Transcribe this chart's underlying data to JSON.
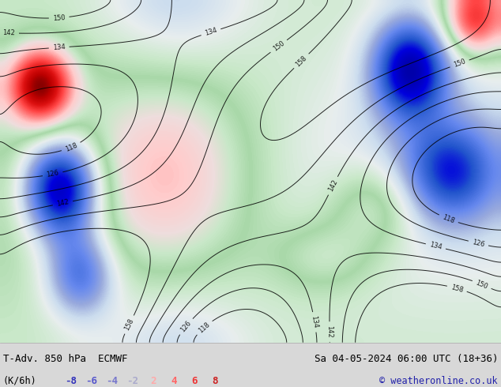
{
  "title_left": "T-Adv. 850 hPa  ECMWF",
  "title_right": "Sa 04-05-2024 06:00 UTC (18+36)",
  "unit_label": "(K/6h)",
  "copyright": "© weatheronline.co.uk",
  "colorbar_values": [
    "-8",
    "-6",
    "-4",
    "-2",
    "2",
    "4",
    "6",
    "8"
  ],
  "colorbar_text_colors": [
    "#3333bb",
    "#5555cc",
    "#7777cc",
    "#aaaacc",
    "#ffaaaa",
    "#ff6666",
    "#ee3333",
    "#cc2222"
  ],
  "background_color": "#d8d8d8",
  "map_bg": "#f0f0f0",
  "bottom_bar_color": "#d8d8d8",
  "figsize": [
    6.34,
    4.9
  ],
  "dpi": 100,
  "map_colors": [
    [
      0.0,
      "#0000aa"
    ],
    [
      0.08,
      "#0000dd"
    ],
    [
      0.15,
      "#2255cc"
    ],
    [
      0.25,
      "#6688ee"
    ],
    [
      0.32,
      "#99aadd"
    ],
    [
      0.38,
      "#ccddee"
    ],
    [
      0.43,
      "#e8eeee"
    ],
    [
      0.48,
      "#c8e8c8"
    ],
    [
      0.52,
      "#a8d8a8"
    ],
    [
      0.56,
      "#c8e8c8"
    ],
    [
      0.6,
      "#eedddd"
    ],
    [
      0.65,
      "#ffcccc"
    ],
    [
      0.72,
      "#ff8888"
    ],
    [
      0.8,
      "#ff4444"
    ],
    [
      0.88,
      "#dd1111"
    ],
    [
      0.95,
      "#bb0000"
    ],
    [
      1.0,
      "#880000"
    ]
  ]
}
